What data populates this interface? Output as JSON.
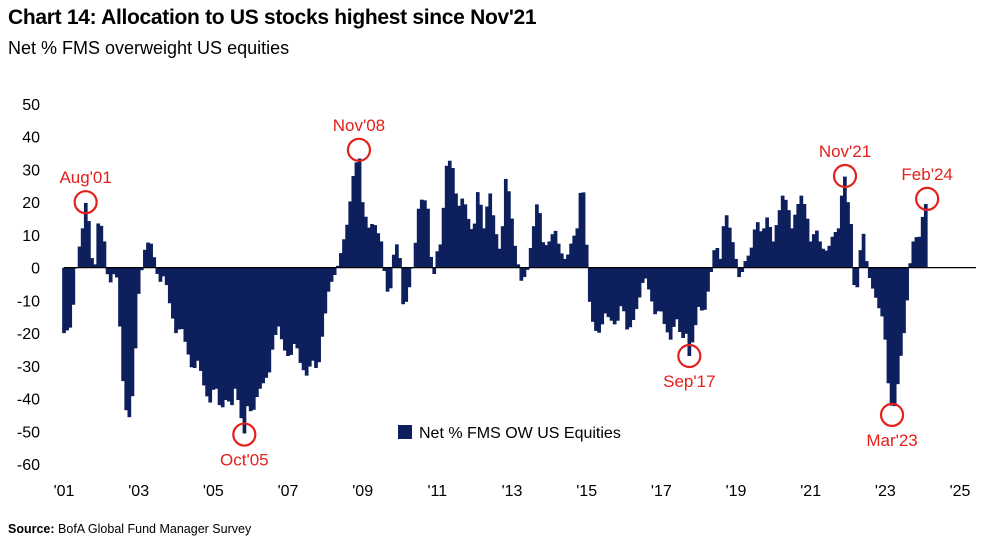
{
  "chart_data": {
    "type": "bar",
    "title": "Chart 14: Allocation to US stocks highest since Nov'21",
    "subtitle": "Net % FMS overweight US equities",
    "source_label": "Source:",
    "source_text": "BofA Global Fund Manager Survey",
    "xlabel": "",
    "ylabel": "",
    "ylim": [
      -60,
      50
    ],
    "yticks": [
      50,
      40,
      30,
      20,
      10,
      0,
      -10,
      -20,
      -30,
      -40,
      -50,
      -60
    ],
    "xlim": [
      2001.0,
      2025.0
    ],
    "xticks": [
      {
        "year": 2001,
        "label": "'01"
      },
      {
        "year": 2003,
        "label": "'03"
      },
      {
        "year": 2005,
        "label": "'05"
      },
      {
        "year": 2007,
        "label": "'07"
      },
      {
        "year": 2009,
        "label": "'09"
      },
      {
        "year": 2011,
        "label": "'11"
      },
      {
        "year": 2013,
        "label": "'13"
      },
      {
        "year": 2015,
        "label": "'15"
      },
      {
        "year": 2017,
        "label": "'17"
      },
      {
        "year": 2019,
        "label": "'19"
      },
      {
        "year": 2021,
        "label": "'21"
      },
      {
        "year": 2023,
        "label": "'23"
      },
      {
        "year": 2025,
        "label": "'25"
      }
    ],
    "grid": false,
    "legend_position": "bottom-center",
    "bar_color": "#0d1f5c",
    "annotation_color": "#e3201b",
    "series": [
      {
        "name": "Net % FMS OW US Equities",
        "anchors": [
          [
            2001.0,
            -20
          ],
          [
            2001.2,
            -18
          ],
          [
            2001.35,
            2
          ],
          [
            2001.5,
            12
          ],
          [
            2001.58,
            20
          ],
          [
            2001.67,
            14
          ],
          [
            2001.8,
            -4
          ],
          [
            2001.92,
            14
          ],
          [
            2002.05,
            12
          ],
          [
            2002.2,
            -6
          ],
          [
            2002.4,
            0
          ],
          [
            2002.5,
            -18
          ],
          [
            2002.6,
            -38
          ],
          [
            2002.72,
            -48
          ],
          [
            2002.85,
            -38
          ],
          [
            2003.0,
            -8
          ],
          [
            2003.15,
            5
          ],
          [
            2003.3,
            9
          ],
          [
            2003.42,
            3
          ],
          [
            2003.55,
            -5
          ],
          [
            2003.7,
            -2
          ],
          [
            2003.85,
            -12
          ],
          [
            2004.0,
            -20
          ],
          [
            2004.15,
            -18
          ],
          [
            2004.3,
            -25
          ],
          [
            2004.45,
            -32
          ],
          [
            2004.6,
            -28
          ],
          [
            2004.75,
            -36
          ],
          [
            2004.9,
            -42
          ],
          [
            2005.05,
            -35
          ],
          [
            2005.2,
            -44
          ],
          [
            2005.35,
            -40
          ],
          [
            2005.5,
            -42
          ],
          [
            2005.6,
            -36
          ],
          [
            2005.75,
            -46
          ],
          [
            2005.83,
            -51
          ],
          [
            2005.92,
            -42
          ],
          [
            2006.05,
            -45
          ],
          [
            2006.2,
            -38
          ],
          [
            2006.35,
            -35
          ],
          [
            2006.5,
            -32
          ],
          [
            2006.62,
            -22
          ],
          [
            2006.75,
            -18
          ],
          [
            2006.9,
            -25
          ],
          [
            2007.05,
            -28
          ],
          [
            2007.2,
            -22
          ],
          [
            2007.35,
            -30
          ],
          [
            2007.5,
            -33
          ],
          [
            2007.65,
            -28
          ],
          [
            2007.8,
            -32
          ],
          [
            2007.95,
            -18
          ],
          [
            2008.1,
            -6
          ],
          [
            2008.3,
            -1
          ],
          [
            2008.45,
            6
          ],
          [
            2008.6,
            14
          ],
          [
            2008.75,
            28
          ],
          [
            2008.85,
            33
          ],
          [
            2008.9,
            36
          ],
          [
            2009.0,
            20
          ],
          [
            2009.15,
            12
          ],
          [
            2009.3,
            14
          ],
          [
            2009.5,
            8
          ],
          [
            2009.62,
            -5
          ],
          [
            2009.72,
            -10
          ],
          [
            2009.85,
            6
          ],
          [
            2009.97,
            8
          ],
          [
            2010.1,
            -14
          ],
          [
            2010.25,
            -6
          ],
          [
            2010.38,
            3
          ],
          [
            2010.5,
            18
          ],
          [
            2010.62,
            22
          ],
          [
            2010.75,
            18
          ],
          [
            2010.88,
            -5
          ],
          [
            2011.0,
            5
          ],
          [
            2011.12,
            8
          ],
          [
            2011.22,
            30
          ],
          [
            2011.3,
            33
          ],
          [
            2011.4,
            32
          ],
          [
            2011.55,
            18
          ],
          [
            2011.7,
            22
          ],
          [
            2011.85,
            14
          ],
          [
            2011.97,
            10
          ],
          [
            2012.1,
            25
          ],
          [
            2012.25,
            12
          ],
          [
            2012.4,
            24
          ],
          [
            2012.55,
            12
          ],
          [
            2012.7,
            4
          ],
          [
            2012.85,
            30
          ],
          [
            2012.97,
            18
          ],
          [
            2013.1,
            5
          ],
          [
            2013.25,
            -4
          ],
          [
            2013.4,
            -2
          ],
          [
            2013.55,
            10
          ],
          [
            2013.7,
            22
          ],
          [
            2013.85,
            6
          ],
          [
            2014.0,
            8
          ],
          [
            2014.15,
            12
          ],
          [
            2014.3,
            5
          ],
          [
            2014.45,
            2
          ],
          [
            2014.6,
            8
          ],
          [
            2014.75,
            12
          ],
          [
            2014.85,
            25
          ],
          [
            2014.95,
            22
          ],
          [
            2015.05,
            -8
          ],
          [
            2015.2,
            -19
          ],
          [
            2015.35,
            -20
          ],
          [
            2015.5,
            -14
          ],
          [
            2015.65,
            -16
          ],
          [
            2015.8,
            -18
          ],
          [
            2015.95,
            -10
          ],
          [
            2016.1,
            -20
          ],
          [
            2016.25,
            -16
          ],
          [
            2016.4,
            -10
          ],
          [
            2016.55,
            -2
          ],
          [
            2016.7,
            -8
          ],
          [
            2016.85,
            -15
          ],
          [
            2016.97,
            -12
          ],
          [
            2017.1,
            -18
          ],
          [
            2017.25,
            -22
          ],
          [
            2017.4,
            -15
          ],
          [
            2017.55,
            -22
          ],
          [
            2017.68,
            -20
          ],
          [
            2017.75,
            -27
          ],
          [
            2017.85,
            -22
          ],
          [
            2018.0,
            -12
          ],
          [
            2018.15,
            -14
          ],
          [
            2018.3,
            -4
          ],
          [
            2018.45,
            8
          ],
          [
            2018.6,
            2
          ],
          [
            2018.7,
            18
          ],
          [
            2018.8,
            14
          ],
          [
            2018.95,
            6
          ],
          [
            2019.1,
            -4
          ],
          [
            2019.25,
            2
          ],
          [
            2019.4,
            5
          ],
          [
            2019.55,
            15
          ],
          [
            2019.7,
            10
          ],
          [
            2019.85,
            16
          ],
          [
            2020.0,
            8
          ],
          [
            2020.1,
            14
          ],
          [
            2020.25,
            22
          ],
          [
            2020.38,
            20
          ],
          [
            2020.5,
            12
          ],
          [
            2020.62,
            18
          ],
          [
            2020.75,
            22
          ],
          [
            2020.88,
            18
          ],
          [
            2021.0,
            8
          ],
          [
            2021.15,
            12
          ],
          [
            2021.3,
            6
          ],
          [
            2021.45,
            5
          ],
          [
            2021.6,
            10
          ],
          [
            2021.75,
            12
          ],
          [
            2021.85,
            24
          ],
          [
            2021.92,
            28
          ],
          [
            2022.0,
            20
          ],
          [
            2022.1,
            12
          ],
          [
            2022.2,
            -14
          ],
          [
            2022.3,
            2
          ],
          [
            2022.4,
            12
          ],
          [
            2022.52,
            0
          ],
          [
            2022.62,
            -5
          ],
          [
            2022.72,
            -8
          ],
          [
            2022.82,
            -12
          ],
          [
            2022.92,
            -15
          ],
          [
            2023.0,
            -22
          ],
          [
            2023.1,
            -38
          ],
          [
            2023.18,
            -43
          ],
          [
            2023.28,
            -42
          ],
          [
            2023.38,
            -30
          ],
          [
            2023.5,
            -20
          ],
          [
            2023.6,
            -8
          ],
          [
            2023.7,
            6
          ],
          [
            2023.8,
            10
          ],
          [
            2023.9,
            8
          ],
          [
            2023.97,
            14
          ],
          [
            2024.05,
            18
          ],
          [
            2024.12,
            21
          ]
        ]
      }
    ],
    "annotations": [
      {
        "label": "Aug'01",
        "x": 2001.58,
        "y": 20,
        "label_side": "above"
      },
      {
        "label": "Oct'05",
        "x": 2005.83,
        "y": -51,
        "label_side": "below"
      },
      {
        "label": "Nov'08",
        "x": 2008.9,
        "y": 36,
        "label_side": "above"
      },
      {
        "label": "Sep'17",
        "x": 2017.75,
        "y": -27,
        "label_side": "below"
      },
      {
        "label": "Nov'21",
        "x": 2021.92,
        "y": 28,
        "label_side": "above"
      },
      {
        "label": "Mar'23",
        "x": 2023.18,
        "y": -45,
        "label_side": "below"
      },
      {
        "label": "Feb'24",
        "x": 2024.12,
        "y": 21,
        "label_side": "above"
      }
    ]
  }
}
